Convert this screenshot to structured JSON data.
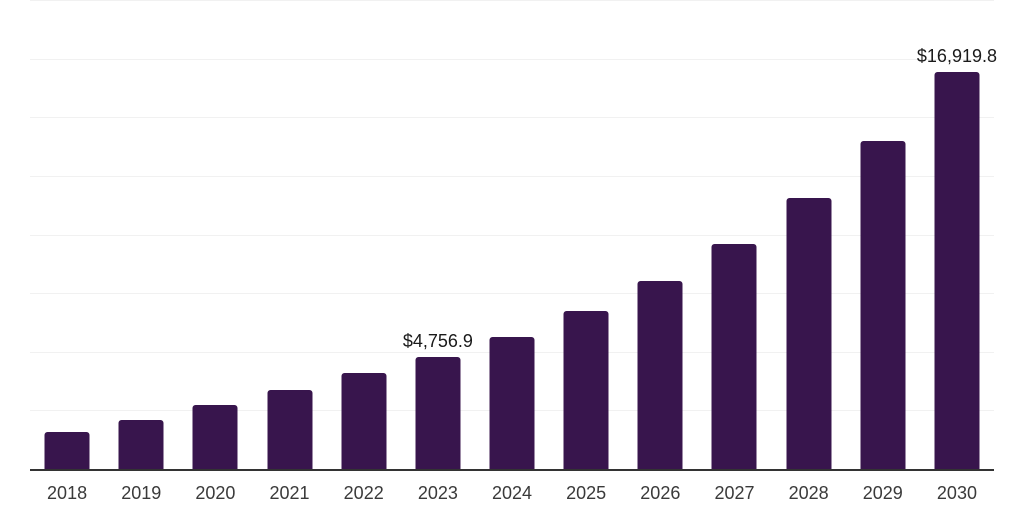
{
  "chart_data": {
    "type": "bar",
    "title": "",
    "xlabel": "",
    "ylabel": "",
    "categories": [
      "2018",
      "2019",
      "2020",
      "2021",
      "2022",
      "2023",
      "2024",
      "2025",
      "2026",
      "2027",
      "2028",
      "2029",
      "2030"
    ],
    "values": [
      1570,
      2100,
      2710,
      3350,
      4080,
      4756.9,
      5650,
      6720,
      8030,
      9600,
      11570,
      13970,
      16919.8
    ],
    "bar_labels": [
      "",
      "",
      "",
      "",
      "",
      "$4,756.9",
      "",
      "",
      "",
      "",
      "",
      "",
      "$16,919.8"
    ],
    "ylim": [
      0,
      20000
    ],
    "gridline_step": 2500,
    "grid": "horizontal-only-no-ytick-labels",
    "legend": "none",
    "colors": {
      "bar": "#38154d",
      "axis": "#333333",
      "gridline": "#f1f1f1",
      "tick_label": "#3a3a3a",
      "data_label": "#1a1a1a",
      "background": "#ffffff"
    }
  }
}
